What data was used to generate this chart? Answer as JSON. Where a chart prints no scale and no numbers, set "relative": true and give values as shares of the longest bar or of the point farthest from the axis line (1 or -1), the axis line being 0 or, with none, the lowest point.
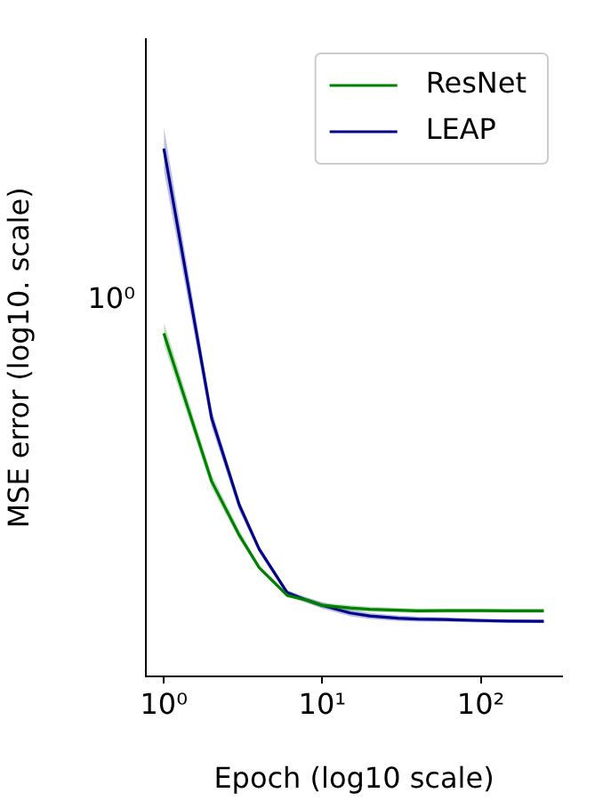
{
  "chart_data": {
    "type": "line",
    "xlabel": "Epoch (log10 scale)",
    "ylabel": "MSE error (log10. scale)",
    "relative": true,
    "annotations": [
      "10⁰"
    ],
    "x": [
      1,
      2,
      3,
      4,
      6,
      8,
      10,
      15,
      20,
      30,
      40,
      60,
      100,
      150,
      250
    ],
    "series": [
      {
        "name": "ResNet",
        "color": "#008000",
        "values": [
          0.65,
          0.37,
          0.267,
          0.206,
          0.1535,
          0.1444,
          0.1346,
          0.1296,
          0.1272,
          0.1255,
          0.1243,
          0.1247,
          0.1247,
          0.1243,
          0.1243
        ],
        "lower": [
          0.63,
          0.358,
          0.259,
          0.202,
          0.1498,
          0.1399,
          0.1296,
          0.1243,
          0.1222,
          0.121,
          0.1202,
          0.1206,
          0.121,
          0.1206,
          0.1206
        ],
        "upper": [
          0.671,
          0.383,
          0.276,
          0.21,
          0.1572,
          0.149,
          0.1395,
          0.135,
          0.1321,
          0.13,
          0.1284,
          0.1288,
          0.1284,
          0.128,
          0.128
        ]
      },
      {
        "name": "LEAP",
        "color": "#00008b",
        "values": [
          1,
          0.49,
          0.324,
          0.241,
          0.1588,
          0.1444,
          0.1346,
          0.1202,
          0.1144,
          0.1103,
          0.1086,
          0.1078,
          0.1058,
          0.1049,
          0.1045
        ],
        "lower": [
          0.959,
          0.473,
          0.313,
          0.235,
          0.1539,
          0.1391,
          0.1284,
          0.114,
          0.1086,
          0.1049,
          0.1037,
          0.1037,
          0.1021,
          0.1016,
          0.1012
        ],
        "upper": [
          1.041,
          0.506,
          0.333,
          0.247,
          0.1638,
          0.1498,
          0.1407,
          0.1263,
          0.1202,
          0.1156,
          0.1136,
          0.1119,
          0.1095,
          0.1082,
          0.1078
        ]
      }
    ],
    "log": "x",
    "xlim": [
      0.77,
      326
    ],
    "xticks": [
      {
        "value": 1,
        "label": "10⁰"
      },
      {
        "value": 10,
        "label": "10¹"
      },
      {
        "value": 100,
        "label": "10²"
      }
    ],
    "grid": false,
    "legend": "top right",
    "marker": "none",
    "line_style": "solid"
  }
}
